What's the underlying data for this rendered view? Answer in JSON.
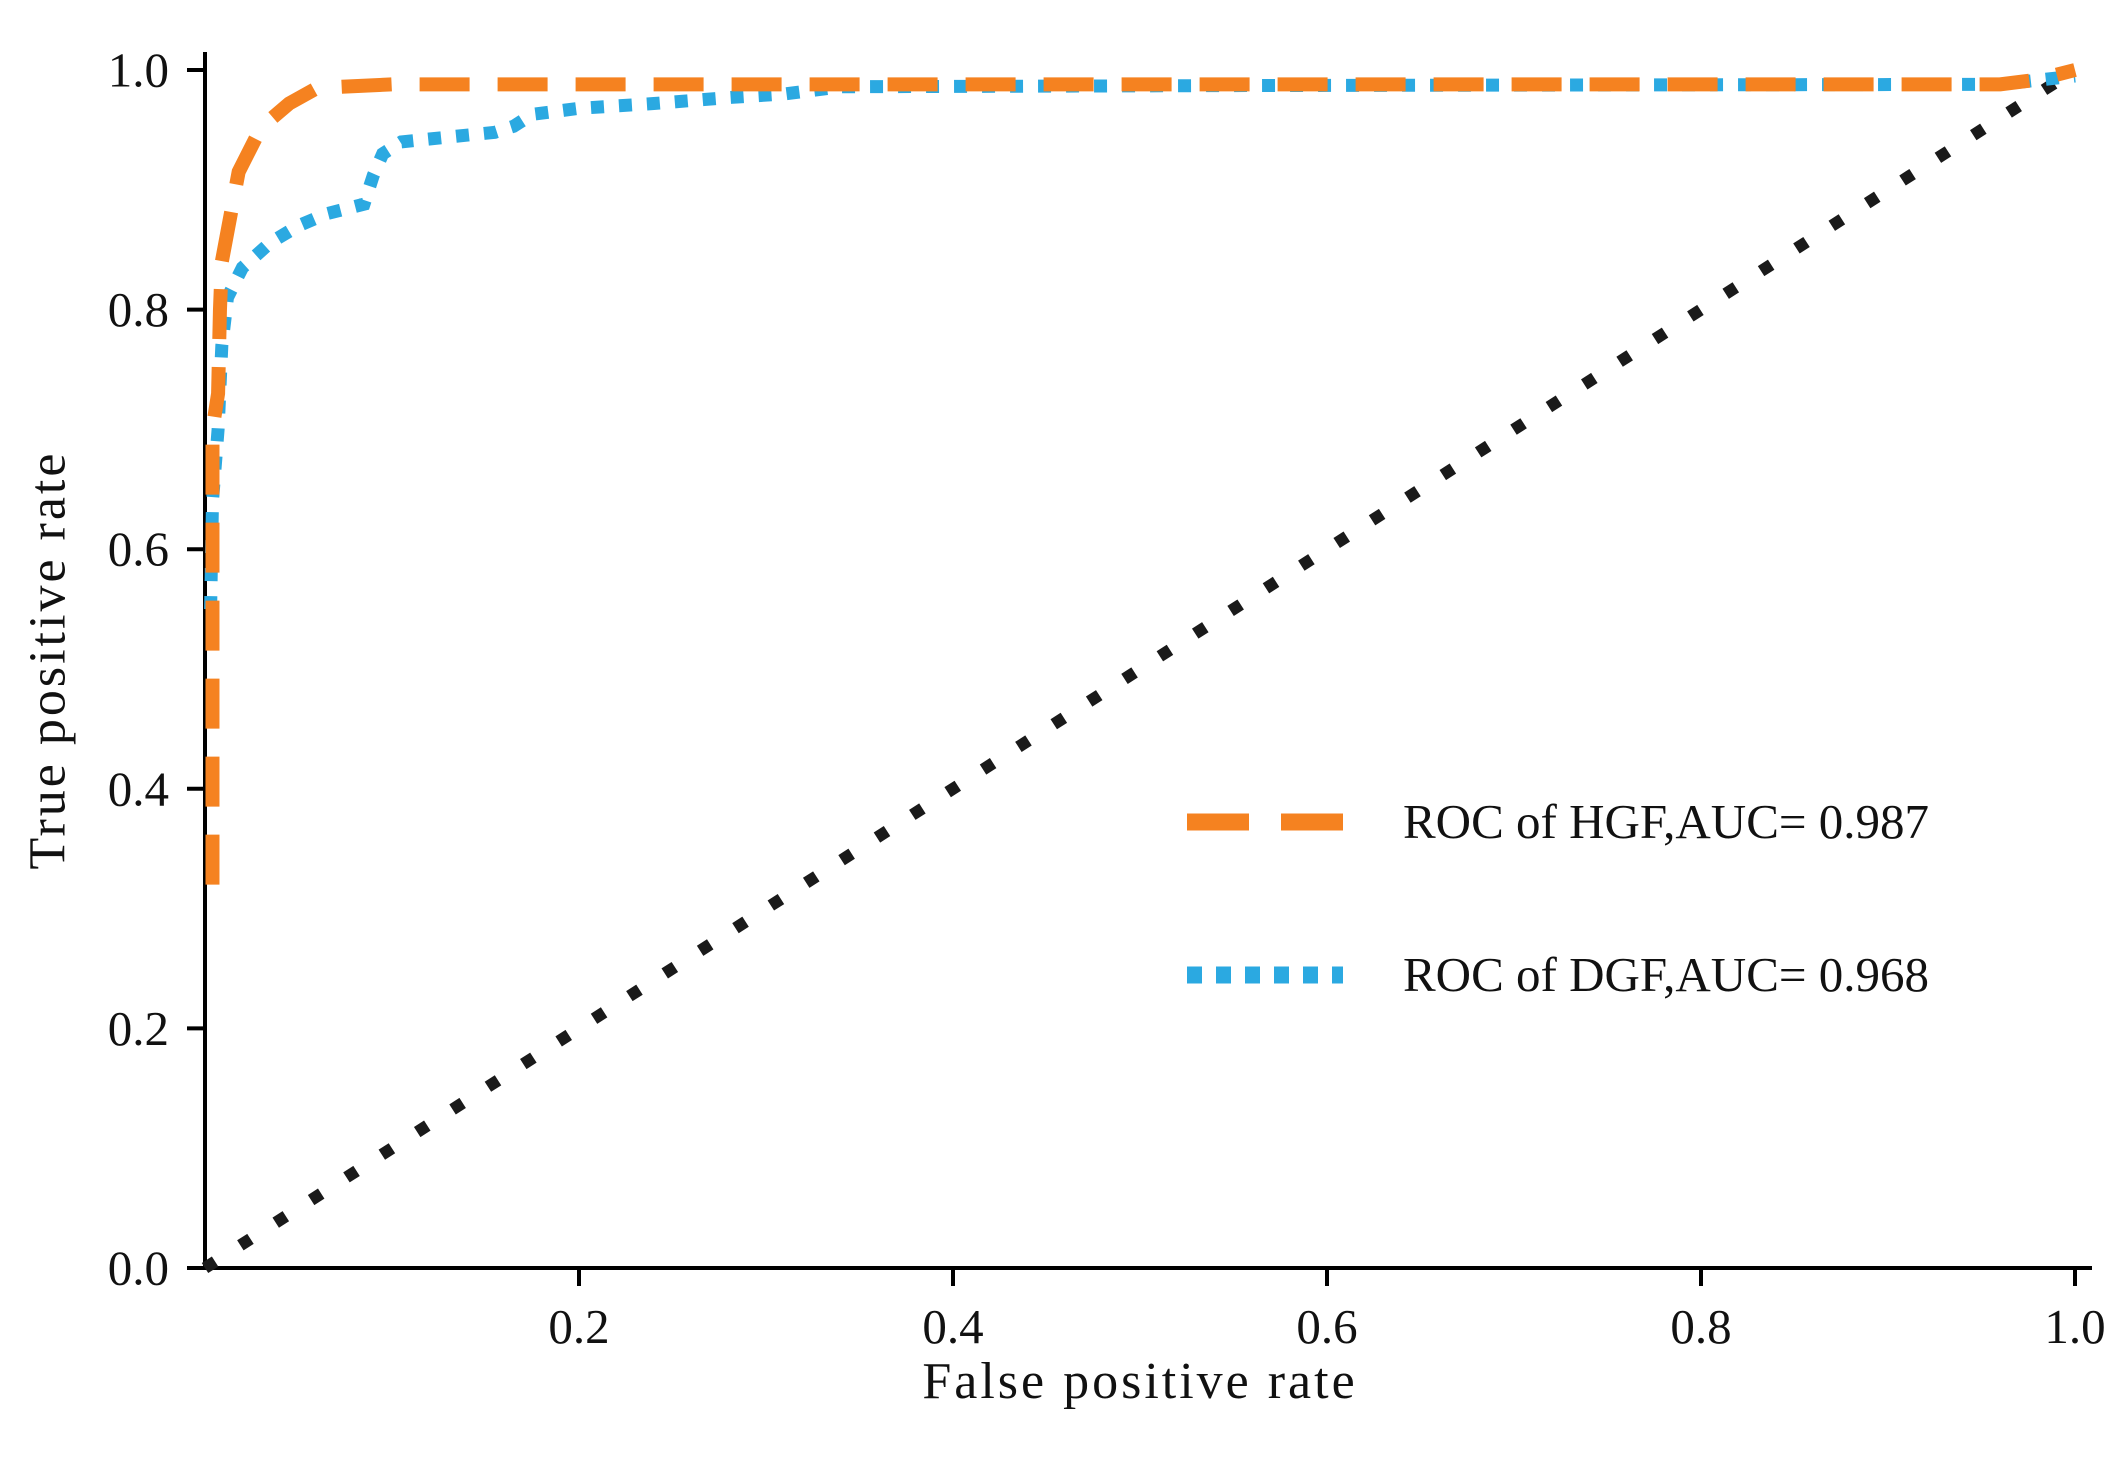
{
  "figure": {
    "xlabel": "False positive rate",
    "ylabel": "True positive rate"
  },
  "chart_data": {
    "type": "line",
    "title": "",
    "xlabel": "False positive rate",
    "ylabel": "True positive rate",
    "xlim": [
      0,
      1
    ],
    "ylim": [
      0,
      1
    ],
    "x_ticks": [
      0.2,
      0.4,
      0.6,
      0.8,
      1.0
    ],
    "y_ticks": [
      0.0,
      0.2,
      0.4,
      0.6,
      0.8,
      1.0
    ],
    "grid": false,
    "legend_position": "inside-lower-right",
    "series": [
      {
        "name": "ROC of HGF,AUC= 0.987",
        "auc": 0.987,
        "color": "#F58220",
        "style": "dashed",
        "points": [
          [
            0.004,
            0.32
          ],
          [
            0.004,
            0.7
          ],
          [
            0.007,
            0.73
          ],
          [
            0.008,
            0.8
          ],
          [
            0.009,
            0.84
          ],
          [
            0.018,
            0.915
          ],
          [
            0.03,
            0.952
          ],
          [
            0.045,
            0.972
          ],
          [
            0.06,
            0.985
          ],
          [
            0.1,
            0.988
          ],
          [
            0.96,
            0.988
          ],
          [
            0.98,
            0.992
          ],
          [
            1.0,
            1.0
          ]
        ]
      },
      {
        "name": "ROC of DGF,AUC= 0.968",
        "auc": 0.968,
        "color": "#2BA9E1",
        "style": "dotted",
        "points": [
          [
            0.003,
            0.55
          ],
          [
            0.004,
            0.64
          ],
          [
            0.007,
            0.7
          ],
          [
            0.009,
            0.77
          ],
          [
            0.012,
            0.81
          ],
          [
            0.02,
            0.835
          ],
          [
            0.035,
            0.856
          ],
          [
            0.05,
            0.87
          ],
          [
            0.065,
            0.88
          ],
          [
            0.085,
            0.888
          ],
          [
            0.09,
            0.912
          ],
          [
            0.095,
            0.93
          ],
          [
            0.105,
            0.94
          ],
          [
            0.13,
            0.944
          ],
          [
            0.155,
            0.948
          ],
          [
            0.165,
            0.953
          ],
          [
            0.175,
            0.963
          ],
          [
            0.2,
            0.968
          ],
          [
            0.24,
            0.972
          ],
          [
            0.28,
            0.977
          ],
          [
            0.31,
            0.98
          ],
          [
            0.34,
            0.986
          ],
          [
            0.55,
            0.987
          ],
          [
            0.96,
            0.988
          ],
          [
            1.0,
            0.995
          ]
        ]
      },
      {
        "name": "chance-diagonal",
        "color": "#1A1A1A",
        "style": "dotted-sparse",
        "points": [
          [
            0.0,
            0.0
          ],
          [
            1.0,
            1.0
          ]
        ]
      }
    ]
  }
}
